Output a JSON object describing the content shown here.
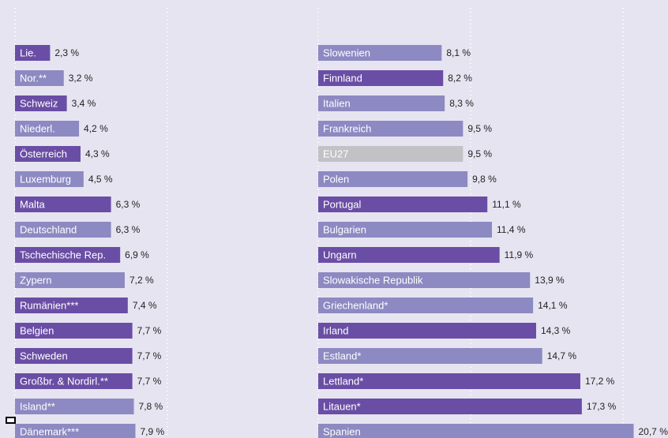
{
  "chart_data": [
    {
      "type": "bar",
      "orientation": "horizontal",
      "categories": [
        "Lie.",
        "Nor.**",
        "Schweiz",
        "Niederl.",
        "Österreich",
        "Luxemburg",
        "Malta",
        "Deutschland",
        "Tschechische Rep.",
        "Zypern",
        "Rumänien***",
        "Belgien",
        "Schweden",
        "Großbr. & Nordirl.**",
        "Island**",
        "Dänemark***"
      ],
      "values": [
        2.3,
        3.2,
        3.4,
        4.2,
        4.3,
        4.5,
        6.3,
        6.3,
        6.9,
        7.2,
        7.4,
        7.7,
        7.7,
        7.7,
        7.8,
        7.9
      ],
      "value_labels": [
        "2,3 %",
        "3,2 %",
        "3,4 %",
        "4,2 %",
        "4,3 %",
        "4,5 %",
        "6,3 %",
        "6,3 %",
        "6,9 %",
        "7,2 %",
        "7,4 %",
        "7,7 %",
        "7,7 %",
        "7,7 %",
        "7,8 %",
        "7,9 %"
      ],
      "colors": [
        "#6a4ea5",
        "#8d89c2",
        "#6a4ea5",
        "#8d89c2",
        "#6a4ea5",
        "#8d89c2",
        "#6a4ea5",
        "#8d89c2",
        "#6a4ea5",
        "#8d89c2",
        "#6a4ea5",
        "#6a4ea5",
        "#6a4ea5",
        "#6a4ea5",
        "#8d89c2",
        "#8d89c2"
      ],
      "xlim": [
        0,
        20
      ],
      "xticks": [
        0,
        10
      ],
      "grid": true
    },
    {
      "type": "bar",
      "orientation": "horizontal",
      "categories": [
        "Slowenien",
        "Finnland",
        "Italien",
        "Frankreich",
        "EU27",
        "Polen",
        "Portugal",
        "Bulgarien",
        "Ungarn",
        "Slowakische Republik",
        "Griechenland*",
        "Irland",
        "Estland*",
        "Lettland*",
        "Litauen*",
        "Spanien"
      ],
      "values": [
        8.1,
        8.2,
        8.3,
        9.5,
        9.5,
        9.8,
        11.1,
        11.4,
        11.9,
        13.9,
        14.1,
        14.3,
        14.7,
        17.2,
        17.3,
        20.7
      ],
      "value_labels": [
        "8,1 %",
        "8,2 %",
        "8,3 %",
        "9,5 %",
        "9,5 %",
        "9,8 %",
        "11,1 %",
        "11,4 %",
        "11,9 %",
        "13,9 %",
        "14,1 %",
        "14,3 %",
        "14,7 %",
        "17,2 %",
        "17,3 %",
        "20,7 %"
      ],
      "colors": [
        "#8d89c2",
        "#6a4ea5",
        "#8d89c2",
        "#8d89c2",
        "#c2c1c6",
        "#8d89c2",
        "#6a4ea5",
        "#8d89c2",
        "#6a4ea5",
        "#8d89c2",
        "#8d89c2",
        "#6a4ea5",
        "#8d89c2",
        "#6a4ea5",
        "#6a4ea5",
        "#8d89c2"
      ],
      "xlim": [
        0,
        20
      ],
      "xticks": [
        0,
        10,
        20
      ],
      "grid": true
    }
  ]
}
